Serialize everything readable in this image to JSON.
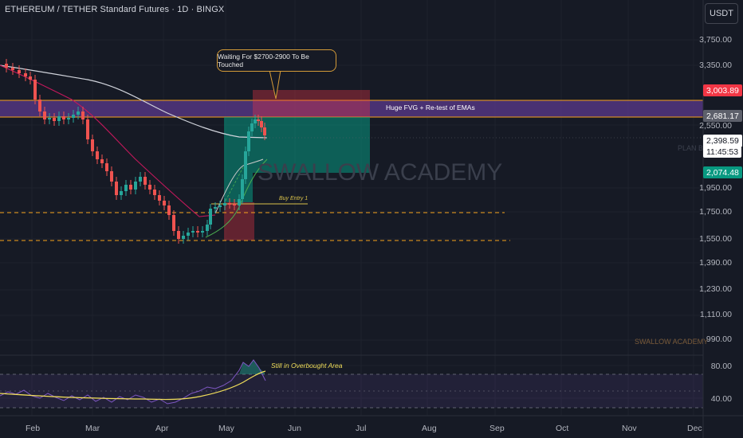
{
  "header": {
    "symbol_title": "ETHEREUM / TETHER Standard Futures · 1D · BINGX"
  },
  "currency_button": {
    "label": "USDT"
  },
  "watermark": {
    "main": "SWALLOW ACADEMY",
    "small": "SWALLOW ACADEMY",
    "plan": "PLAN B"
  },
  "annotations": {
    "callout": "Waiting For $2700-2900 To Be Touched",
    "fvg_zone": "Huge FVG + Re-test of EMAs",
    "buy_entry": "Buy Entry 1",
    "rsi_note": "Still in Overbought Area"
  },
  "price_axis": {
    "labels": [
      "3,750.00",
      "3,350.00",
      "2,550.00",
      "1,950.00",
      "1,750.00",
      "1,550.00",
      "1,390.00",
      "1,230.00",
      "1,110.00",
      "990.00"
    ],
    "badges": {
      "stop": {
        "value": "3,003.89",
        "color": "#f23645"
      },
      "fvg_top": {
        "value": "2,681.17",
        "color": "#5d606b"
      },
      "current": {
        "value": "2,398.59",
        "countdown": "11:45:53",
        "color": "#ffffff"
      },
      "target": {
        "value": "2,074.48",
        "color": "#089981"
      }
    }
  },
  "rsi_axis": {
    "labels": [
      "80.00",
      "40.00"
    ]
  },
  "time_axis": {
    "labels": [
      "Feb",
      "Mar",
      "Apr",
      "May",
      "Jun",
      "Jul",
      "Aug",
      "Sep",
      "Oct",
      "Nov",
      "Dec"
    ]
  },
  "colors": {
    "background": "#161a25",
    "bull": "#26a69a",
    "bear": "#ef5350",
    "fvg_fill": "#5b3a8c",
    "orange_line": "#f7a21b",
    "ema_short": "#c2185b",
    "ema_long": "#d1d4dc",
    "rsi_line": "#7e57c2",
    "rsi_ma": "#f2df5a"
  }
}
